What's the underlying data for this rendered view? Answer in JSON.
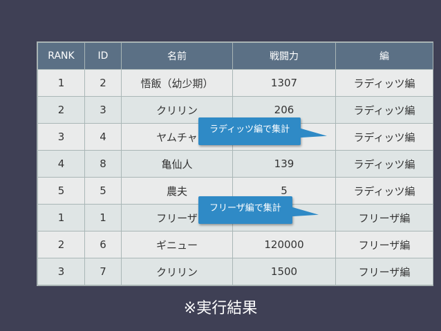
{
  "table": {
    "headers": [
      "RANK",
      "ID",
      "名前",
      "戦闘力",
      "編"
    ],
    "rows": [
      [
        "1",
        "2",
        "悟飯（幼少期）",
        "1307",
        "ラディッツ編"
      ],
      [
        "2",
        "3",
        "クリリン",
        "206",
        "ラディッツ編"
      ],
      [
        "3",
        "4",
        "ヤムチャ",
        "",
        "ラディッツ編"
      ],
      [
        "4",
        "8",
        "亀仙人",
        "139",
        "ラディッツ編"
      ],
      [
        "5",
        "5",
        "農夫",
        "5",
        "ラディッツ編"
      ],
      [
        "1",
        "1",
        "フリーザ",
        "",
        "フリーザ編"
      ],
      [
        "2",
        "6",
        "ギニュー",
        "120000",
        "フリーザ編"
      ],
      [
        "3",
        "7",
        "クリリン",
        "1500",
        "フリーザ編"
      ]
    ]
  },
  "callouts": {
    "raditz": "ラディッツ編で集計",
    "frieza": "フリーザ編で集計"
  },
  "footer": "※実行結果",
  "colors": {
    "background": "#3f4055",
    "header_bg": "#5b7085",
    "callout_bg": "#2f8ac6"
  }
}
